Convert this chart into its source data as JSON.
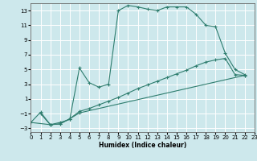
{
  "xlabel": "Humidex (Indice chaleur)",
  "bg_color": "#cde8ec",
  "grid_color": "#ffffff",
  "line_color": "#2e7d6e",
  "xlim": [
    0,
    23
  ],
  "ylim": [
    -3.5,
    14
  ],
  "xticks": [
    0,
    1,
    2,
    3,
    4,
    5,
    6,
    7,
    8,
    9,
    10,
    11,
    12,
    13,
    14,
    15,
    16,
    17,
    18,
    19,
    20,
    21,
    22,
    23
  ],
  "yticks": [
    -3,
    -1,
    1,
    3,
    5,
    7,
    9,
    11,
    13
  ],
  "curve1_x": [
    1,
    2,
    3,
    4,
    5,
    6,
    7,
    8,
    9,
    10,
    11,
    12,
    13,
    14,
    15,
    16,
    17,
    18,
    19,
    20,
    21,
    22
  ],
  "curve1_y": [
    -1,
    -2.5,
    -2.2,
    -1.8,
    5.2,
    3.2,
    2.6,
    3.0,
    13.0,
    13.7,
    13.5,
    13.2,
    13.0,
    13.5,
    13.5,
    13.5,
    12.5,
    11.0,
    10.8,
    7.2,
    5.0,
    4.3
  ],
  "curve2_x": [
    0,
    1,
    2,
    3,
    4,
    5,
    6,
    7,
    8,
    9,
    10,
    11,
    12,
    13,
    14,
    15,
    16,
    17,
    18,
    19,
    20,
    21,
    22
  ],
  "curve2_y": [
    -2.2,
    -0.8,
    -2.5,
    -2.4,
    -1.7,
    -0.7,
    -0.3,
    0.2,
    0.7,
    1.2,
    1.8,
    2.4,
    2.9,
    3.4,
    3.9,
    4.4,
    4.9,
    5.5,
    6.0,
    6.3,
    6.5,
    4.3,
    4.2
  ],
  "curve3_x": [
    0,
    2,
    3,
    4,
    5,
    22
  ],
  "curve3_y": [
    -2.2,
    -2.5,
    -2.4,
    -1.7,
    -0.9,
    4.2
  ]
}
